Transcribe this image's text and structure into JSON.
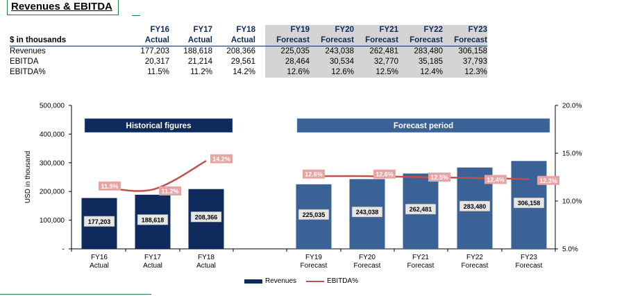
{
  "title": "Revenues & EBITDA",
  "table": {
    "unit_label": "$ in thousands",
    "columns": [
      {
        "fy": "FY16",
        "kind": "Actual"
      },
      {
        "fy": "FY17",
        "kind": "Actual"
      },
      {
        "fy": "FY18",
        "kind": "Actual"
      },
      {
        "fy": "FY19",
        "kind": "Forecast"
      },
      {
        "fy": "FY20",
        "kind": "Forecast"
      },
      {
        "fy": "FY21",
        "kind": "Forecast"
      },
      {
        "fy": "FY22",
        "kind": "Forecast"
      },
      {
        "fy": "FY23",
        "kind": "Forecast"
      }
    ],
    "rows": [
      {
        "label": "Revenues",
        "values": [
          "177,203",
          "188,618",
          "208,366",
          "225,035",
          "243,038",
          "262,481",
          "283,480",
          "306,158"
        ]
      },
      {
        "label": "EBITDA",
        "values": [
          "20,317",
          "21,214",
          "29,561",
          "28,464",
          "30,534",
          "32,770",
          "35,185",
          "37,793"
        ]
      },
      {
        "label": "EBITDA%",
        "values": [
          "11.5%",
          "11.2%",
          "14.2%",
          "12.6%",
          "12.6%",
          "12.5%",
          "12.4%",
          "12.3%"
        ]
      }
    ]
  },
  "chart_data": {
    "type": "bar",
    "categories": [
      "FY16\nActual",
      "FY17\nActual",
      "FY18\nActual",
      "FY19\nForecast",
      "FY20\nForecast",
      "FY21\nForecast",
      "FY22\nForecast",
      "FY23\nForecast"
    ],
    "series": [
      {
        "name": "Revenues",
        "type": "bar",
        "axis": "left",
        "values": [
          177203,
          188618,
          208366,
          225035,
          243038,
          262481,
          283480,
          306158
        ],
        "labels": [
          "177,203",
          "188,618",
          "208,366",
          "225,035",
          "243,038",
          "262,481",
          "283,480",
          "306,158"
        ]
      },
      {
        "name": "EBITDA%",
        "type": "line",
        "axis": "right",
        "values": [
          11.5,
          11.2,
          14.2,
          12.6,
          12.6,
          12.5,
          12.4,
          12.3
        ],
        "labels": [
          "11.5%",
          "11.2%",
          "14.2%",
          "12.6%",
          "12.6%",
          "12.5%",
          "12.4%",
          "12.3%"
        ]
      }
    ],
    "ylabel": "USD in thousand",
    "ylim": [
      0,
      500000
    ],
    "yticks": [
      "-",
      "100,000",
      "200,000",
      "300,000",
      "400,000",
      "500,000"
    ],
    "y2lim": [
      5,
      20
    ],
    "y2ticks": [
      "5.0%",
      "10.0%",
      "15.0%",
      "20.0%"
    ],
    "bands": [
      {
        "label": "Historical figures",
        "color": "#0f2a5c"
      },
      {
        "label": "Forecast period",
        "color": "#3a6296"
      }
    ],
    "colors": {
      "historical": "#0f2a5c",
      "forecast": "#3a6296",
      "line": "#c0504d",
      "line_label_bg": "#e6a5a3",
      "bar_label_bg": "#e6e6e6"
    },
    "legend": "bottom"
  }
}
